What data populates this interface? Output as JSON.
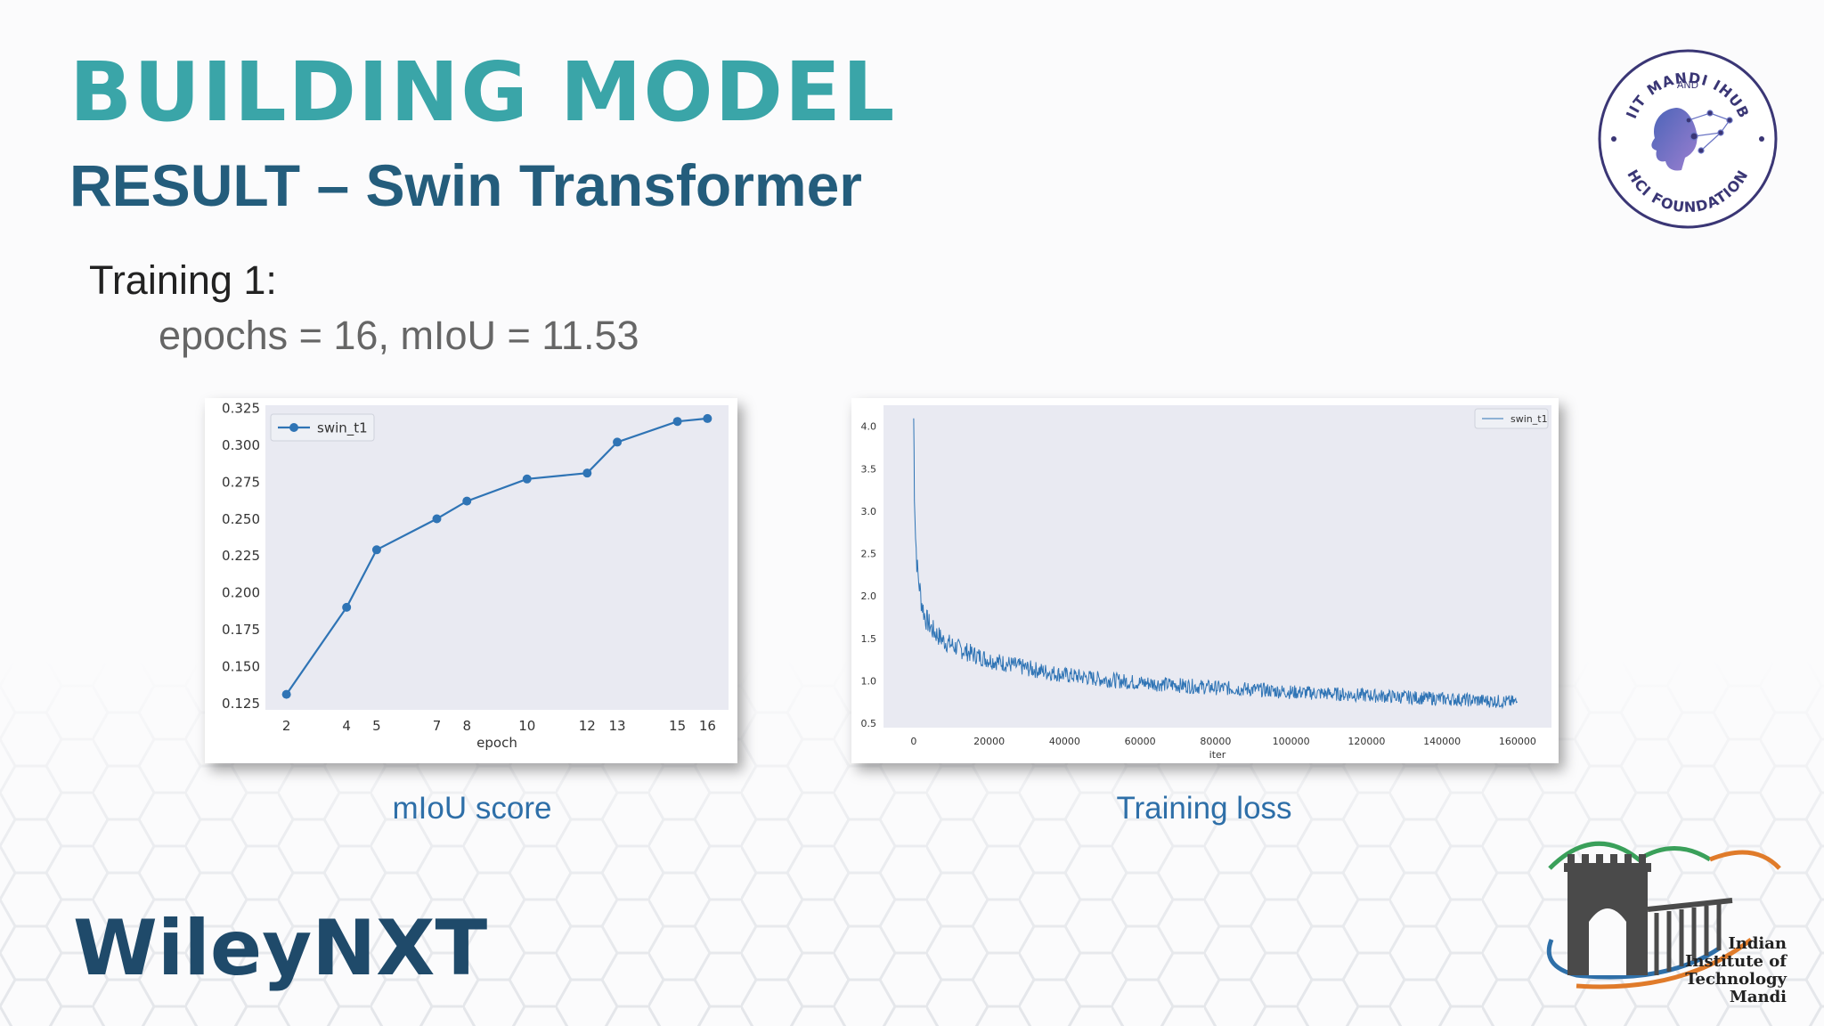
{
  "slide": {
    "title": "BUILDING MODEL",
    "subtitle": "RESULT – Swin Transformer",
    "training_title": "Training 1:",
    "training_detail": "epochs = 16, mIoU = 11.53",
    "caption_left": "mIoU score",
    "caption_right": "Training loss",
    "brand": "WileyNXT",
    "logo_hci_text_top": "IIT MANDI IHUB",
    "logo_hci_text_and": "AND",
    "logo_hci_text_bottom": "HCI FOUNDATION",
    "iit_lines": [
      "Indian",
      "Institute of",
      "Technology",
      "Mandi"
    ]
  },
  "colors": {
    "title": "#3aa5a8",
    "subtitle": "#245d7c",
    "caption": "#2e6fa8",
    "brand": "#1f4a6a",
    "series": "#2f74b5",
    "plot_bg": "#e9eaf2"
  },
  "chart_data": [
    {
      "type": "line",
      "xlabel": "epoch",
      "ylabel": "",
      "xlim": [
        1.3,
        16.7
      ],
      "ylim": [
        0.1205,
        0.327
      ],
      "x_ticks": [
        2,
        4,
        5,
        7,
        8,
        10,
        12,
        13,
        15,
        16
      ],
      "y_ticks": [
        0.125,
        0.15,
        0.175,
        0.2,
        0.225,
        0.25,
        0.275,
        0.3,
        0.325
      ],
      "y_tick_labels": [
        "0.125",
        "0.150",
        "0.175",
        "0.200",
        "0.225",
        "0.250",
        "0.275",
        "0.300",
        "0.325"
      ],
      "grid": false,
      "legend": "top-left",
      "series": [
        {
          "name": "swin_t1",
          "marker": "circle",
          "x": [
            2,
            4,
            5,
            7,
            8,
            10,
            12,
            13,
            15,
            16
          ],
          "values": [
            0.131,
            0.19,
            0.229,
            0.25,
            0.262,
            0.277,
            0.281,
            0.302,
            0.316,
            0.318
          ]
        }
      ]
    },
    {
      "type": "line",
      "xlabel": "iter",
      "ylabel": "",
      "xlim": [
        -8000,
        169000
      ],
      "ylim": [
        0.45,
        4.25
      ],
      "x_ticks": [
        0,
        20000,
        40000,
        60000,
        80000,
        100000,
        120000,
        140000,
        160000
      ],
      "y_ticks": [
        0.5,
        1.0,
        1.5,
        2.0,
        2.5,
        3.0,
        3.5,
        4.0
      ],
      "y_tick_labels": [
        "0.5",
        "1.0",
        "1.5",
        "2.0",
        "2.5",
        "3.0",
        "3.5",
        "4.0"
      ],
      "grid": false,
      "legend": "top-right",
      "series": [
        {
          "name": "swin_t1",
          "note_points": "approximate trend of noisy loss curve",
          "x": [
            0,
            200,
            500,
            1000,
            2000,
            3000,
            5000,
            8000,
            12000,
            16000,
            20000,
            30000,
            40000,
            50000,
            60000,
            70000,
            80000,
            90000,
            100000,
            110000,
            120000,
            130000,
            140000,
            150000,
            160000
          ],
          "values": [
            4.1,
            3.3,
            2.7,
            2.3,
            1.95,
            1.75,
            1.6,
            1.47,
            1.38,
            1.31,
            1.25,
            1.15,
            1.07,
            1.02,
            0.98,
            0.95,
            0.92,
            0.9,
            0.87,
            0.85,
            0.83,
            0.81,
            0.79,
            0.77,
            0.75
          ]
        }
      ]
    }
  ]
}
